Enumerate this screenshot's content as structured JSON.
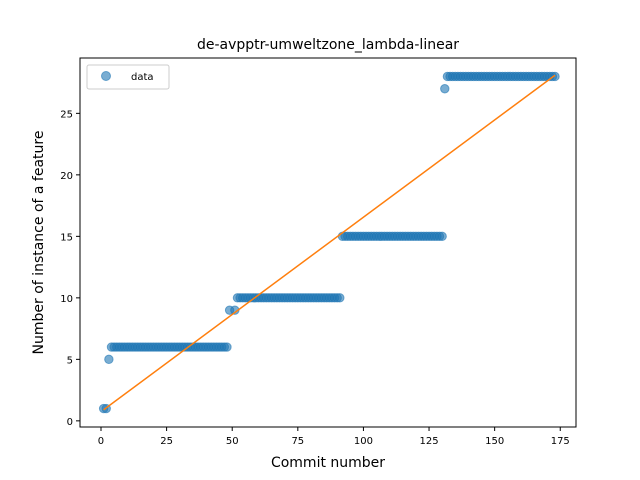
{
  "chart_data": {
    "type": "scatter",
    "title": "de-avpptr-umweltzone_lambda-linear",
    "xlabel": "Commit number",
    "ylabel": "Number of instance of a feature",
    "xlim": [
      -8,
      181
    ],
    "ylim": [
      -0.5,
      29.5
    ],
    "xticks": [
      0,
      25,
      50,
      75,
      100,
      125,
      150,
      175
    ],
    "yticks": [
      0,
      5,
      10,
      15,
      20,
      25
    ],
    "legend": {
      "placement": "top-left",
      "entries": [
        "data"
      ]
    },
    "colors": {
      "data": "#1f77b4",
      "fit": "#ff7f0e"
    },
    "grid": false,
    "series": [
      {
        "name": "data",
        "kind": "scatter",
        "segments": [
          {
            "x_start": 1,
            "x_end": 2,
            "y": 1
          },
          {
            "x_start": 3,
            "x_end": 3,
            "y": 5
          },
          {
            "x_start": 4,
            "x_end": 48,
            "y": 6
          },
          {
            "x_start": 49,
            "x_end": 49,
            "y": 9
          },
          {
            "x_start": 51,
            "x_end": 51,
            "y": 9
          },
          {
            "x_start": 52,
            "x_end": 91,
            "y": 10
          },
          {
            "x_start": 92,
            "x_end": 130,
            "y": 15
          },
          {
            "x_start": 131,
            "x_end": 131,
            "y": 27
          },
          {
            "x_start": 132,
            "x_end": 173,
            "y": 28
          }
        ]
      },
      {
        "name": "",
        "kind": "line",
        "x": [
          1,
          173
        ],
        "y": [
          0.9,
          28.1
        ]
      }
    ]
  }
}
